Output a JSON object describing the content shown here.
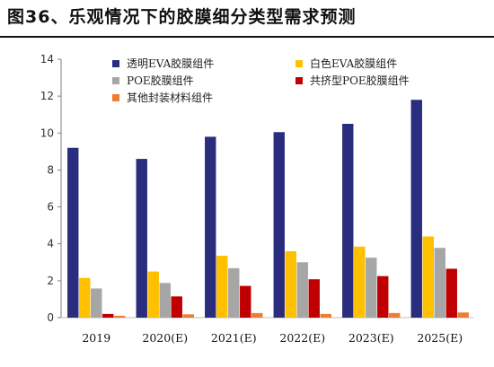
{
  "title": "图36、乐观情况下的胶膜细分类型需求预测",
  "chart_data": {
    "type": "bar",
    "title": "图36、乐观情况下的胶膜细分类型需求预测",
    "xlabel": "",
    "ylabel": "",
    "ylim": [
      0,
      14
    ],
    "yticks": [
      0,
      2,
      4,
      6,
      8,
      10,
      12,
      14
    ],
    "grid": false,
    "legend_position": "top",
    "categories": [
      "2019",
      "2020(E)",
      "2021(E)",
      "2022(E)",
      "2023(E)",
      "2025(E)"
    ],
    "series": [
      {
        "name": "透明EVA胶膜组件",
        "color": "#2A2C7E",
        "values": [
          9.2,
          8.6,
          9.8,
          10.05,
          10.5,
          11.8
        ]
      },
      {
        "name": "白色EVA胶膜组件",
        "color": "#FFC000",
        "values": [
          2.15,
          2.5,
          3.35,
          3.6,
          3.85,
          4.4
        ]
      },
      {
        "name": "POE胶膜组件",
        "color": "#A6A6A6",
        "values": [
          1.58,
          1.88,
          2.68,
          3.0,
          3.25,
          3.78
        ]
      },
      {
        "name": "共挤型POE胶膜组件",
        "color": "#C00000",
        "values": [
          0.2,
          1.15,
          1.72,
          2.08,
          2.25,
          2.65
        ]
      },
      {
        "name": "其他封装材料组件",
        "color": "#ED7D31",
        "values": [
          0.1,
          0.18,
          0.25,
          0.2,
          0.25,
          0.28
        ]
      }
    ]
  }
}
